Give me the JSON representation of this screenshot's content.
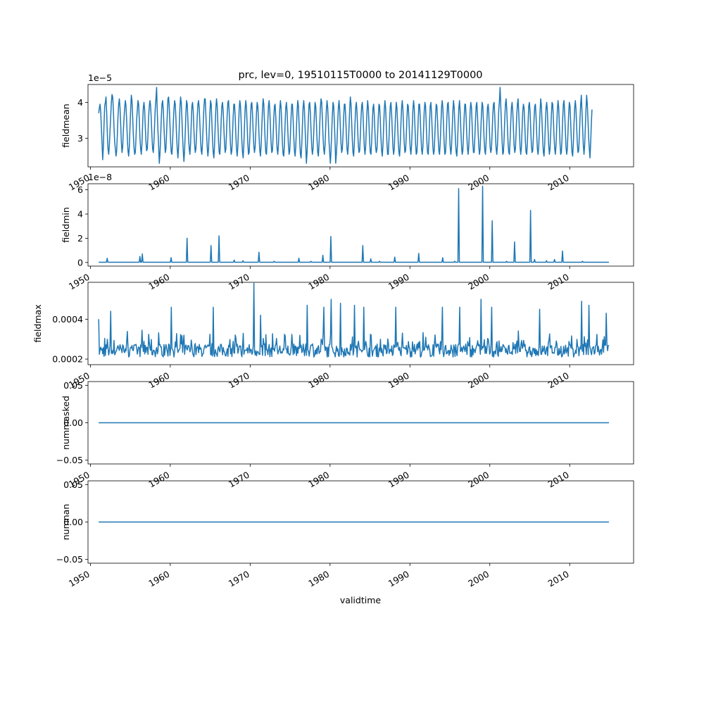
{
  "figure": {
    "title": "prc, lev=0, 19510115T0000 to 20141129T0000",
    "xlabel": "validtime",
    "line_color": "#1f77b4"
  },
  "chart_data": [
    {
      "type": "line",
      "ylabel": "fieldmean",
      "offset_label": "1e−5",
      "xlim": [
        1949.7,
        2018.0
      ],
      "ylim": [
        2.2,
        4.5
      ],
      "yticks": [
        3,
        4
      ],
      "ytick_labels": [
        "3",
        "4"
      ],
      "xticks": [
        1950,
        1960,
        1970,
        1980,
        1990,
        2000,
        2010
      ],
      "xtick_labels": [
        "1950",
        "1960",
        "1970",
        "1980",
        "1990",
        "2000",
        "2010"
      ],
      "x_start": 1951.04,
      "x_step": 0.0833333,
      "values": [
        3.7,
        3.85,
        3.95,
        3.75,
        3.3,
        2.85,
        2.4,
        2.75,
        3.4,
        3.9,
        4.0,
        4.15,
        3.7,
        3.1,
        2.7,
        2.55,
        2.8,
        3.2,
        3.6,
        4.0,
        4.22,
        4.15,
        3.8,
        3.3,
        2.9,
        2.7,
        2.5,
        2.65,
        3.1,
        3.6,
        3.95,
        4.1,
        3.85,
        3.4,
        2.9,
        2.6,
        2.75,
        3.2,
        3.55,
        3.85,
        4.05,
        3.9,
        3.5,
        3.0,
        2.65,
        2.5,
        2.75,
        3.3,
        3.8,
        4.2,
        4.05,
        3.6,
        3.1,
        2.75,
        2.55,
        2.6,
        3.0,
        3.5,
        3.8,
        4.05,
        3.95,
        3.5,
        3.0,
        2.7,
        2.55,
        2.85,
        3.4,
        3.85,
        4.0,
        3.8,
        3.3,
        2.9,
        2.65,
        2.7,
        3.1,
        3.6,
        3.9,
        4.05,
        3.9,
        3.5,
        3.05,
        2.7,
        2.6,
        2.9,
        3.4,
        3.85,
        4.1,
        4.42,
        3.7,
        3.2,
        2.8,
        2.3,
        2.55,
        3.0,
        3.55,
        3.95,
        4.05,
        3.8,
        3.35,
        2.9,
        2.6,
        2.7,
        3.15,
        3.65,
        4.1,
        4.15,
        3.85,
        3.4,
        2.9,
        2.6,
        2.55,
        2.9,
        3.4,
        3.8,
        4.05,
        3.95,
        3.55,
        3.05,
        2.7,
        2.45,
        2.75,
        3.3,
        3.85,
        4.15,
        4.0,
        3.55,
        3.05,
        2.65,
        2.35,
        2.65,
        3.15,
        3.7,
        4.05,
        3.95,
        3.5,
        3.0,
        2.7,
        2.55,
        2.85,
        3.4,
        3.9,
        4.0,
        3.75,
        3.25,
        2.85,
        2.6,
        2.7,
        3.1,
        3.6,
        3.95,
        4.05,
        3.85,
        3.4,
        2.95,
        2.65,
        2.55,
        2.9,
        3.4,
        3.85,
        4.1,
        4.1,
        3.65,
        3.15,
        2.75,
        2.5,
        2.7,
        3.2,
        3.7,
        4.05,
        3.95,
        3.45,
        2.95,
        2.6,
        2.45,
        2.8,
        3.35,
        3.85,
        4.1,
        3.9,
        3.4,
        2.9,
        2.6,
        2.55,
        2.95,
        3.5,
        3.9,
        4.0,
        3.75,
        3.3,
        2.85,
        2.6,
        2.7,
        3.15,
        3.65,
        4.0,
        4.05,
        3.75,
        3.25,
        2.8,
        2.55,
        2.65,
        3.1,
        3.6,
        3.95,
        3.95,
        3.6,
        3.1,
        2.7,
        2.5,
        2.75,
        3.3,
        3.8,
        4.05,
        3.9,
        3.45,
        2.95,
        2.6,
        2.45,
        2.8,
        3.35,
        3.85,
        4.05,
        3.85,
        3.35,
        2.85,
        2.55,
        2.6,
        3.0,
        3.55,
        3.95,
        4.0,
        3.7,
        3.2,
        2.8,
        2.6,
        2.75,
        3.2,
        3.7,
        4.0,
        3.9,
        3.5,
        3.0,
        2.65,
        2.5,
        2.8,
        3.3,
        3.8,
        4.1,
        3.95,
        3.45,
        2.95,
        2.6,
        2.55,
        2.9,
        3.45,
        3.9,
        4.05,
        3.8,
        3.3,
        2.85,
        2.6,
        2.65,
        3.05,
        3.55,
        3.9,
        3.95,
        3.6,
        3.1,
        2.7,
        2.55,
        2.8,
        3.3,
        3.8,
        4.05,
        3.85,
        3.35,
        2.85,
        2.55,
        2.5,
        2.85,
        3.4,
        3.85,
        4.0,
        3.75,
        3.25,
        2.8,
        2.55,
        2.65,
        3.1,
        3.6,
        3.95,
        3.95,
        3.55,
        3.05,
        2.65,
        2.5,
        2.75,
        3.25,
        3.75,
        4.05,
        3.9,
        3.4,
        2.9,
        2.55,
        2.45,
        2.8,
        3.35,
        3.85,
        4.05,
        3.8,
        3.3,
        2.8,
        2.3,
        2.6,
        3.05,
        3.55,
        3.95,
        4.0,
        3.7,
        3.2,
        2.75,
        2.55,
        2.7,
        3.15,
        3.65,
        4.0,
        3.9,
        3.45,
        2.95,
        2.6,
        2.5,
        2.85,
        3.35,
        3.85,
        4.1,
        4.0,
        3.55,
        3.05,
        2.7,
        2.55,
        2.8,
        3.3,
        3.8,
        4.05,
        3.85,
        3.4,
        2.9,
        2.6,
        2.3,
        2.65,
        3.15,
        3.65,
        4.0,
        3.9,
        3.45,
        2.95,
        2.3,
        2.55,
        2.9,
        3.4,
        3.85,
        4.05,
        3.8,
        3.3,
        2.85,
        2.6,
        2.7,
        3.1,
        3.6,
        3.95,
        3.95,
        3.6,
        3.1,
        2.7,
        2.55,
        2.8,
        3.3,
        3.8,
        4.15,
        3.95,
        3.45,
        2.95,
        2.6,
        2.5,
        2.85,
        3.4,
        3.85,
        4.0,
        3.75,
        3.25,
        2.8,
        2.6,
        2.65,
        3.05,
        3.55,
        3.9,
        4.0,
        3.7,
        3.2,
        2.75,
        2.55,
        2.75,
        3.25,
        3.75,
        4.05,
        3.85,
        3.4,
        2.9,
        2.6,
        2.55,
        2.9,
        3.4,
        3.85,
        3.95,
        3.65,
        3.15,
        2.75,
        2.6,
        2.7,
        3.1,
        3.6,
        3.95,
        3.9,
        3.5,
        3.0,
        2.65,
        2.5,
        2.8,
        3.3,
        3.8,
        4.05,
        3.85,
        3.35,
        2.85,
        2.55,
        2.55,
        2.95,
        3.5,
        3.9,
        4.0,
        3.7,
        3.2,
        2.75,
        2.55,
        2.7,
        3.2,
        3.7,
        4.0,
        3.85,
        3.4,
        2.9,
        2.6,
        2.5,
        2.85,
        3.4,
        3.85,
        4.05,
        3.8,
        3.3,
        2.85,
        2.6,
        2.65,
        3.05,
        3.55,
        3.95,
        3.9,
        3.55,
        3.05,
        2.7,
        2.55,
        2.8,
        3.3,
        3.8,
        4.05,
        3.85,
        3.35,
        2.85,
        2.55,
        2.6,
        3.0,
        3.55,
        3.95,
        3.95,
        3.6,
        3.1,
        2.7,
        2.55,
        2.75,
        3.25,
        3.75,
        4.0,
        3.9,
        3.4,
        2.9,
        2.6,
        2.55,
        2.9,
        3.45,
        3.9,
        4.0,
        3.7,
        3.2,
        2.75,
        2.55,
        2.65,
        3.1,
        3.6,
        3.95,
        3.9,
        3.5,
        3.0,
        2.65,
        2.55,
        2.85,
        3.35,
        3.85,
        4.05,
        3.85,
        3.35,
        2.85,
        2.55,
        2.6,
        3.0,
        3.55,
        3.95,
        4.0,
        3.65,
        3.15,
        2.75,
        2.55,
        2.75,
        3.25,
        3.75,
        4.05,
        3.85,
        3.4,
        2.9,
        2.6,
        2.5,
        2.85,
        3.4,
        3.85,
        4.05,
        3.75,
        3.25,
        2.8,
        2.55,
        2.65,
        3.1,
        3.6,
        3.95,
        3.95,
        3.55,
        3.05,
        2.7,
        2.55,
        2.8,
        3.3,
        3.8,
        4.0,
        3.85,
        3.35,
        2.85,
        2.6,
        2.6,
        3.0,
        3.5,
        3.9,
        4.0,
        3.65,
        3.15,
        2.75,
        2.55,
        2.7,
        3.2,
        3.7,
        4.0,
        3.9,
        3.45,
        2.95,
        2.65,
        2.55,
        2.9,
        3.4,
        3.85,
        3.95,
        3.7,
        3.2,
        2.75,
        2.6,
        2.7,
        3.15,
        3.65,
        3.95,
        4.0,
        3.6,
        3.1,
        2.7,
        2.55,
        2.8,
        3.3,
        3.8,
        4.05,
        4.42,
        3.9,
        3.4,
        2.9,
        2.55,
        2.6,
        3.0,
        3.55,
        3.95,
        4.1,
        3.8,
        3.3,
        2.85,
        2.6,
        2.55,
        2.95,
        3.45,
        3.85,
        4.0,
        3.75,
        3.25,
        2.8,
        2.6,
        2.7,
        3.15,
        3.65,
        3.95,
        4.1,
        3.7,
        3.2,
        2.75,
        2.55,
        2.75,
        3.25,
        3.75,
        3.95,
        3.85,
        3.4,
        2.9,
        2.6,
        2.55,
        2.9,
        3.4,
        3.9,
        4.0,
        3.75,
        3.25,
        2.8,
        2.6,
        2.65,
        3.05,
        3.55,
        3.9,
        3.95,
        3.6,
        3.1,
        2.7,
        2.55,
        2.75,
        3.25,
        3.75,
        4.1,
        3.9,
        3.45,
        2.95,
        2.6,
        2.5,
        2.85,
        3.4,
        3.85,
        4.0,
        3.75,
        3.25,
        2.8,
        2.55,
        2.7,
        3.15,
        3.65,
        4.0,
        3.95,
        3.55,
        3.05,
        2.7,
        2.55,
        2.8,
        3.3,
        3.8,
        4.05,
        3.85,
        3.35,
        2.85,
        2.55,
        2.6,
        3.0,
        3.55,
        3.95,
        4.05,
        3.7,
        3.2,
        2.75,
        2.55,
        2.7,
        3.2,
        3.7,
        4.0,
        3.9,
        3.45,
        2.95,
        2.6,
        2.5,
        2.85,
        3.4,
        3.85,
        4.05,
        3.8,
        3.3,
        2.85,
        2.6,
        2.65,
        3.05,
        3.55,
        3.95,
        4.2,
        3.75,
        3.25,
        2.8,
        2.55,
        2.8,
        3.3,
        3.8,
        4.2,
        3.95,
        3.5,
        3.0,
        2.7,
        2.45,
        2.85,
        3.4,
        3.8
      ]
    },
    {
      "type": "line",
      "ylabel": "fieldmin",
      "offset_label": "1e−8",
      "xlim": [
        1949.7,
        2018.0
      ],
      "ylim": [
        -0.3,
        6.5
      ],
      "yticks": [
        0,
        2,
        4,
        6
      ],
      "ytick_labels": [
        "0",
        "2",
        "4",
        "6"
      ],
      "xticks": [
        1950,
        1960,
        1970,
        1980,
        1990,
        2000,
        2010
      ],
      "xtick_labels": [
        "1950",
        "1960",
        "1970",
        "1980",
        "1990",
        "2000",
        "2010"
      ],
      "x_range": [
        1951.04,
        2014.91
      ],
      "baseline": 0.02,
      "spikes": [
        {
          "x": 1952.1,
          "y": 0.35
        },
        {
          "x": 1956.2,
          "y": 0.5
        },
        {
          "x": 1956.5,
          "y": 0.7
        },
        {
          "x": 1960.1,
          "y": 0.4
        },
        {
          "x": 1962.1,
          "y": 2.0
        },
        {
          "x": 1965.1,
          "y": 1.4
        },
        {
          "x": 1966.1,
          "y": 2.2
        },
        {
          "x": 1968.0,
          "y": 0.2
        },
        {
          "x": 1969.1,
          "y": 0.15
        },
        {
          "x": 1971.1,
          "y": 0.85
        },
        {
          "x": 1973.0,
          "y": 0.1
        },
        {
          "x": 1976.1,
          "y": 0.35
        },
        {
          "x": 1977.6,
          "y": 0.1
        },
        {
          "x": 1979.1,
          "y": 0.6
        },
        {
          "x": 1980.1,
          "y": 2.15
        },
        {
          "x": 1984.1,
          "y": 1.4
        },
        {
          "x": 1985.1,
          "y": 0.3
        },
        {
          "x": 1986.2,
          "y": 0.1
        },
        {
          "x": 1988.1,
          "y": 0.45
        },
        {
          "x": 1991.1,
          "y": 0.75
        },
        {
          "x": 1994.1,
          "y": 0.4
        },
        {
          "x": 1995.6,
          "y": 0.1
        },
        {
          "x": 1996.1,
          "y": 6.1
        },
        {
          "x": 1999.1,
          "y": 6.3
        },
        {
          "x": 2000.3,
          "y": 3.45
        },
        {
          "x": 2002.1,
          "y": 0.1
        },
        {
          "x": 2003.1,
          "y": 1.7
        },
        {
          "x": 2005.1,
          "y": 4.3
        },
        {
          "x": 2005.6,
          "y": 0.25
        },
        {
          "x": 2007.1,
          "y": 0.15
        },
        {
          "x": 2008.1,
          "y": 0.25
        },
        {
          "x": 2009.1,
          "y": 0.95
        },
        {
          "x": 2011.6,
          "y": 0.1
        }
      ]
    },
    {
      "type": "line",
      "ylabel": "fieldmax",
      "offset_label": "",
      "xlim": [
        1949.7,
        2018.0
      ],
      "ylim": [
        0.000172,
        0.000585
      ],
      "yticks": [
        0.0002,
        0.0004
      ],
      "ytick_labels": [
        "0.0002",
        "0.0004"
      ],
      "xticks": [
        1950,
        1960,
        1970,
        1980,
        1990,
        2000,
        2010
      ],
      "xtick_labels": [
        "1950",
        "1960",
        "1970",
        "1980",
        "1990",
        "2000",
        "2010"
      ],
      "x_range": [
        1951.04,
        2014.91
      ],
      "noise_base": 0.00024,
      "noise_amplitude": 0.00011,
      "peaks": [
        {
          "x": 1951.04,
          "y": 0.0004
        },
        {
          "x": 1952.5,
          "y": 0.00044
        },
        {
          "x": 1960.1,
          "y": 0.00046
        },
        {
          "x": 1965.4,
          "y": 0.00046
        },
        {
          "x": 1970.5,
          "y": 0.00058
        },
        {
          "x": 1971.3,
          "y": 0.00042
        },
        {
          "x": 1977.1,
          "y": 0.00047
        },
        {
          "x": 1979.2,
          "y": 0.00046
        },
        {
          "x": 1980.1,
          "y": 0.0005
        },
        {
          "x": 1981.3,
          "y": 0.00048
        },
        {
          "x": 1983.1,
          "y": 0.00047
        },
        {
          "x": 1984.2,
          "y": 0.00046
        },
        {
          "x": 1988.2,
          "y": 0.00046
        },
        {
          "x": 1994.1,
          "y": 0.00046
        },
        {
          "x": 1996.2,
          "y": 0.00046
        },
        {
          "x": 1998.9,
          "y": 0.0005
        },
        {
          "x": 2000.2,
          "y": 0.00046
        },
        {
          "x": 2006.2,
          "y": 0.00045
        },
        {
          "x": 2011.5,
          "y": 0.00049
        },
        {
          "x": 2012.4,
          "y": 0.00047
        },
        {
          "x": 2014.6,
          "y": 0.00043
        }
      ]
    },
    {
      "type": "line",
      "ylabel": "nummasked",
      "offset_label": "",
      "xlim": [
        1949.7,
        2018.0
      ],
      "ylim": [
        -0.055,
        0.055
      ],
      "yticks": [
        -0.05,
        0.0,
        0.05
      ],
      "ytick_labels": [
        "−0.05",
        "0.00",
        "0.05"
      ],
      "xticks": [
        1950,
        1960,
        1970,
        1980,
        1990,
        2000,
        2010
      ],
      "xtick_labels": [
        "1950",
        "1960",
        "1970",
        "1980",
        "1990",
        "2000",
        "2010"
      ],
      "x": [
        1951.04,
        2014.91
      ],
      "values": [
        0,
        0
      ]
    },
    {
      "type": "line",
      "ylabel": "numnan",
      "offset_label": "",
      "xlim": [
        1949.7,
        2018.0
      ],
      "ylim": [
        -0.055,
        0.055
      ],
      "yticks": [
        -0.05,
        0.0,
        0.05
      ],
      "ytick_labels": [
        "−0.05",
        "0.00",
        "0.05"
      ],
      "xticks": [
        1950,
        1960,
        1970,
        1980,
        1990,
        2000,
        2010
      ],
      "xtick_labels": [
        "1950",
        "1960",
        "1970",
        "1980",
        "1990",
        "2000",
        "2010"
      ],
      "x": [
        1951.04,
        2014.91
      ],
      "values": [
        0,
        0
      ]
    }
  ]
}
